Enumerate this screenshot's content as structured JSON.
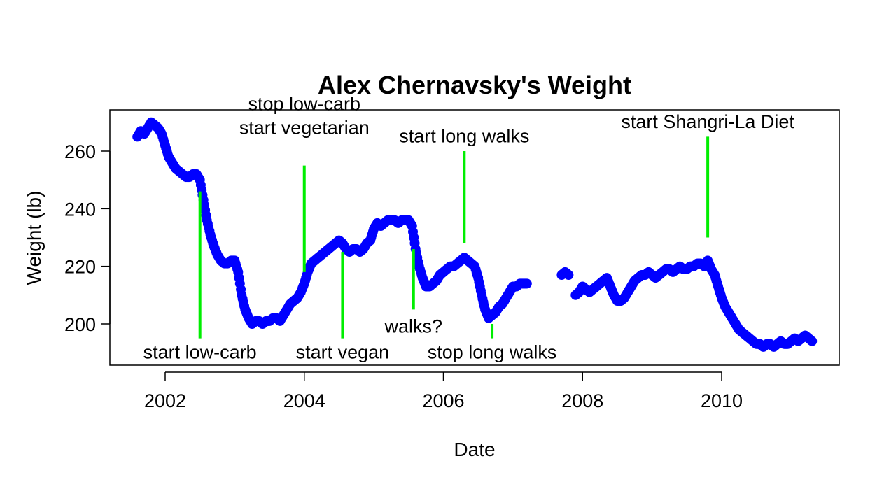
{
  "chart_data": {
    "type": "scatter",
    "title": "Alex Chernavsky's Weight",
    "xlabel": "Date",
    "ylabel": "Weight (lb)",
    "x_ticks": [
      2002,
      2004,
      2006,
      2008,
      2010
    ],
    "y_ticks": [
      200,
      220,
      240,
      260
    ],
    "xlim": [
      2000.8,
      2011.6
    ],
    "ylim": [
      185,
      275
    ],
    "colors": {
      "points": "#0000ff",
      "annotations": "#00ee00"
    },
    "series": [
      {
        "values": [
          [
            2001.6,
            265
          ],
          [
            2001.65,
            267
          ],
          [
            2001.7,
            266
          ],
          [
            2001.75,
            268
          ],
          [
            2001.8,
            270
          ],
          [
            2001.85,
            269
          ],
          [
            2001.9,
            268
          ],
          [
            2001.95,
            266
          ],
          [
            2002.0,
            262
          ],
          [
            2002.05,
            258
          ],
          [
            2002.1,
            256
          ],
          [
            2002.15,
            254
          ],
          [
            2002.2,
            253
          ],
          [
            2002.25,
            252
          ],
          [
            2002.3,
            251
          ],
          [
            2002.35,
            251
          ],
          [
            2002.4,
            252
          ],
          [
            2002.45,
            252
          ],
          [
            2002.5,
            250
          ],
          [
            2002.55,
            243
          ],
          [
            2002.6,
            236
          ],
          [
            2002.65,
            231
          ],
          [
            2002.7,
            227
          ],
          [
            2002.75,
            224
          ],
          [
            2002.8,
            222
          ],
          [
            2002.85,
            221
          ],
          [
            2002.9,
            221
          ],
          [
            2002.95,
            222
          ],
          [
            2003.0,
            222
          ],
          [
            2003.05,
            218
          ],
          [
            2003.1,
            210
          ],
          [
            2003.15,
            205
          ],
          [
            2003.2,
            202
          ],
          [
            2003.25,
            200
          ],
          [
            2003.3,
            201
          ],
          [
            2003.35,
            201
          ],
          [
            2003.4,
            200
          ],
          [
            2003.45,
            201
          ],
          [
            2003.5,
            201
          ],
          [
            2003.55,
            202
          ],
          [
            2003.6,
            202
          ],
          [
            2003.65,
            201
          ],
          [
            2003.7,
            203
          ],
          [
            2003.75,
            205
          ],
          [
            2003.8,
            207
          ],
          [
            2003.85,
            208
          ],
          [
            2003.9,
            209
          ],
          [
            2003.95,
            211
          ],
          [
            2004.0,
            214
          ],
          [
            2004.05,
            218
          ],
          [
            2004.1,
            221
          ],
          [
            2004.15,
            222
          ],
          [
            2004.2,
            223
          ],
          [
            2004.25,
            224
          ],
          [
            2004.3,
            225
          ],
          [
            2004.35,
            226
          ],
          [
            2004.4,
            227
          ],
          [
            2004.45,
            228
          ],
          [
            2004.5,
            229
          ],
          [
            2004.55,
            228
          ],
          [
            2004.6,
            226
          ],
          [
            2004.65,
            225
          ],
          [
            2004.7,
            226
          ],
          [
            2004.75,
            226
          ],
          [
            2004.8,
            225
          ],
          [
            2004.85,
            226
          ],
          [
            2004.9,
            228
          ],
          [
            2004.95,
            229
          ],
          [
            2005.0,
            233
          ],
          [
            2005.05,
            235
          ],
          [
            2005.1,
            234
          ],
          [
            2005.15,
            235
          ],
          [
            2005.2,
            236
          ],
          [
            2005.25,
            236
          ],
          [
            2005.3,
            236
          ],
          [
            2005.35,
            235
          ],
          [
            2005.4,
            236
          ],
          [
            2005.45,
            236
          ],
          [
            2005.5,
            236
          ],
          [
            2005.55,
            234
          ],
          [
            2005.6,
            226
          ],
          [
            2005.65,
            220
          ],
          [
            2005.7,
            216
          ],
          [
            2005.75,
            213
          ],
          [
            2005.8,
            213
          ],
          [
            2005.85,
            214
          ],
          [
            2005.9,
            215
          ],
          [
            2005.95,
            217
          ],
          [
            2006.0,
            218
          ],
          [
            2006.05,
            219
          ],
          [
            2006.1,
            220
          ],
          [
            2006.15,
            220
          ],
          [
            2006.2,
            221
          ],
          [
            2006.25,
            222
          ],
          [
            2006.3,
            223
          ],
          [
            2006.35,
            222
          ],
          [
            2006.4,
            221
          ],
          [
            2006.45,
            220
          ],
          [
            2006.5,
            216
          ],
          [
            2006.55,
            210
          ],
          [
            2006.6,
            205
          ],
          [
            2006.65,
            202
          ],
          [
            2006.7,
            203
          ],
          [
            2006.75,
            204
          ],
          [
            2006.8,
            206
          ],
          [
            2006.85,
            207
          ],
          [
            2006.9,
            209
          ],
          [
            2006.95,
            211
          ],
          [
            2007.0,
            213
          ],
          [
            2007.05,
            213
          ],
          [
            2007.1,
            214
          ],
          [
            2007.15,
            214
          ],
          [
            2007.2,
            214
          ],
          [
            2007.7,
            217
          ],
          [
            2007.75,
            218
          ],
          [
            2007.8,
            217
          ],
          [
            2007.9,
            210
          ],
          [
            2007.95,
            211
          ],
          [
            2008.0,
            213
          ],
          [
            2008.05,
            212
          ],
          [
            2008.1,
            211
          ],
          [
            2008.15,
            212
          ],
          [
            2008.2,
            213
          ],
          [
            2008.25,
            214
          ],
          [
            2008.3,
            215
          ],
          [
            2008.35,
            216
          ],
          [
            2008.4,
            213
          ],
          [
            2008.45,
            210
          ],
          [
            2008.5,
            208
          ],
          [
            2008.55,
            208
          ],
          [
            2008.6,
            209
          ],
          [
            2008.65,
            211
          ],
          [
            2008.7,
            213
          ],
          [
            2008.75,
            215
          ],
          [
            2008.8,
            216
          ],
          [
            2008.85,
            217
          ],
          [
            2008.9,
            217
          ],
          [
            2008.95,
            218
          ],
          [
            2009.0,
            217
          ],
          [
            2009.05,
            216
          ],
          [
            2009.1,
            217
          ],
          [
            2009.15,
            218
          ],
          [
            2009.2,
            219
          ],
          [
            2009.25,
            219
          ],
          [
            2009.3,
            218
          ],
          [
            2009.35,
            219
          ],
          [
            2009.4,
            220
          ],
          [
            2009.45,
            219
          ],
          [
            2009.5,
            219
          ],
          [
            2009.55,
            220
          ],
          [
            2009.6,
            220
          ],
          [
            2009.65,
            221
          ],
          [
            2009.7,
            221
          ],
          [
            2009.75,
            220
          ],
          [
            2009.8,
            222
          ],
          [
            2009.85,
            219
          ],
          [
            2009.9,
            217
          ],
          [
            2009.95,
            213
          ],
          [
            2010.0,
            209
          ],
          [
            2010.05,
            206
          ],
          [
            2010.1,
            204
          ],
          [
            2010.15,
            202
          ],
          [
            2010.2,
            200
          ],
          [
            2010.25,
            198
          ],
          [
            2010.3,
            197
          ],
          [
            2010.35,
            196
          ],
          [
            2010.4,
            195
          ],
          [
            2010.45,
            194
          ],
          [
            2010.5,
            193
          ],
          [
            2010.55,
            193
          ],
          [
            2010.6,
            192
          ],
          [
            2010.65,
            193
          ],
          [
            2010.7,
            193
          ],
          [
            2010.75,
            192
          ],
          [
            2010.8,
            193
          ],
          [
            2010.85,
            194
          ],
          [
            2010.9,
            193
          ],
          [
            2010.95,
            193
          ],
          [
            2011.0,
            194
          ],
          [
            2011.05,
            195
          ],
          [
            2011.1,
            194
          ],
          [
            2011.15,
            195
          ],
          [
            2011.2,
            196
          ],
          [
            2011.25,
            195
          ],
          [
            2011.3,
            194
          ]
        ]
      }
    ],
    "annotations": [
      {
        "text": "start low-carb",
        "x": 2002.5,
        "line_y": [
          195,
          246
        ],
        "text_y": 188,
        "lines": [
          "start low-carb"
        ]
      },
      {
        "text": "stop low-carb start vegetarian",
        "x": 2004.0,
        "line_y": [
          218,
          255
        ],
        "text_y": 266,
        "lines": [
          "stop low-carb",
          "start vegetarian"
        ]
      },
      {
        "text": "start vegan",
        "x": 2004.55,
        "line_y": [
          195,
          225
        ],
        "text_y": 188,
        "lines": [
          "start vegan"
        ]
      },
      {
        "text": "walks?",
        "x": 2005.57,
        "line_y": [
          205,
          226
        ],
        "text_y": 197,
        "lines": [
          "walks?"
        ]
      },
      {
        "text": "start long walks",
        "x": 2006.3,
        "line_y": [
          228,
          260
        ],
        "text_y": 263,
        "lines": [
          "start long walks"
        ]
      },
      {
        "text": "stop long walks",
        "x": 2006.7,
        "line_y": [
          195,
          200
        ],
        "text_y": 188,
        "lines": [
          "stop long walks"
        ]
      },
      {
        "text": "start Shangri-La Diet",
        "x": 2009.8,
        "line_y": [
          230,
          265
        ],
        "text_y": 268,
        "lines": [
          "start Shangri-La Diet"
        ]
      }
    ]
  }
}
